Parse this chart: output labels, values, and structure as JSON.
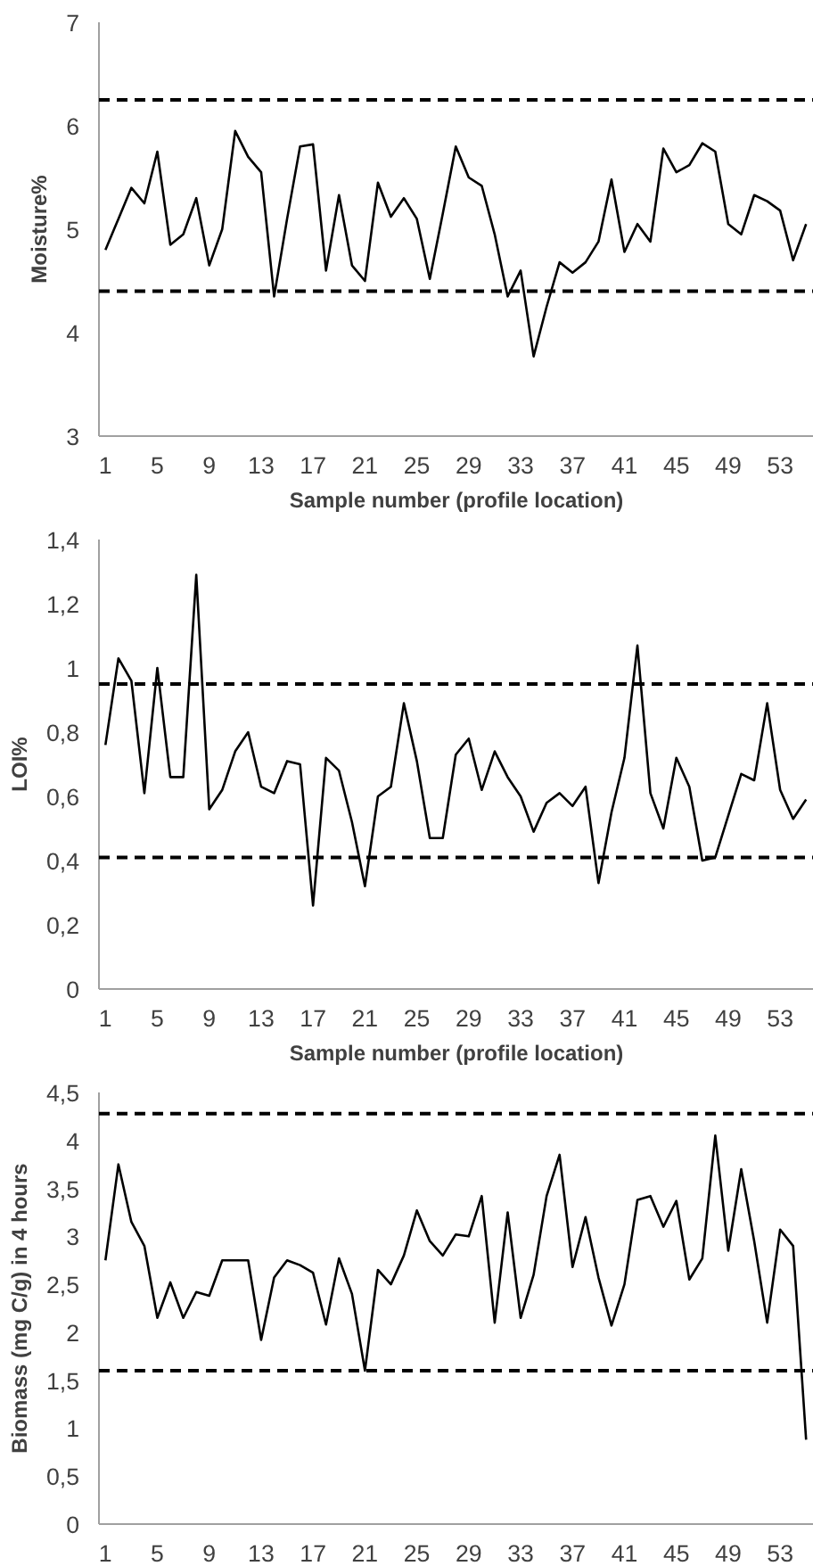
{
  "chart_data": [
    {
      "type": "line",
      "xlabel": "Sample number (profile location)",
      "ylabel": "Moisture%",
      "x": [
        1,
        2,
        3,
        4,
        5,
        6,
        7,
        8,
        9,
        10,
        11,
        12,
        13,
        14,
        15,
        16,
        17,
        18,
        19,
        20,
        21,
        22,
        23,
        24,
        25,
        26,
        27,
        28,
        29,
        30,
        31,
        32,
        33,
        34,
        35,
        36,
        37,
        38,
        39,
        40,
        41,
        42,
        43,
        44,
        45,
        46,
        47,
        48,
        49,
        50,
        51,
        52,
        53,
        54,
        55
      ],
      "xlim": [
        0.5,
        55.6
      ],
      "xticks": [
        1,
        5,
        9,
        13,
        17,
        21,
        25,
        29,
        33,
        37,
        41,
        45,
        49,
        53
      ],
      "ylim": [
        3,
        7
      ],
      "yticks": [
        3,
        4,
        5,
        6,
        7
      ],
      "grid": false,
      "series": [
        {
          "color": "#000000",
          "values": [
            4.8,
            5.1,
            5.4,
            5.25,
            5.75,
            4.85,
            4.95,
            5.3,
            4.65,
            5.0,
            5.95,
            5.7,
            5.55,
            4.35,
            5.1,
            5.8,
            5.82,
            4.6,
            5.33,
            4.65,
            4.5,
            5.45,
            5.12,
            5.3,
            5.1,
            4.52,
            5.15,
            5.8,
            5.5,
            5.42,
            4.95,
            4.35,
            4.6,
            3.77,
            4.25,
            4.68,
            4.58,
            4.68,
            4.88,
            5.48,
            4.78,
            5.05,
            4.88,
            5.78,
            5.55,
            5.62,
            5.83,
            5.75,
            5.05,
            4.95,
            5.33,
            5.27,
            5.18,
            4.7,
            5.05
          ]
        }
      ],
      "ref_lines": [
        {
          "axis": "y",
          "value": 6.25,
          "color": "#000000",
          "line_style": "dashed"
        },
        {
          "axis": "y",
          "value": 4.4,
          "color": "#000000",
          "line_style": "dashed"
        }
      ]
    },
    {
      "type": "line",
      "xlabel": "Sample number (profile location)",
      "ylabel": "LOI%",
      "x": [
        1,
        2,
        3,
        4,
        5,
        6,
        7,
        8,
        9,
        10,
        11,
        12,
        13,
        14,
        15,
        16,
        17,
        18,
        19,
        20,
        21,
        22,
        23,
        24,
        25,
        26,
        27,
        28,
        29,
        30,
        31,
        32,
        33,
        34,
        35,
        36,
        37,
        38,
        39,
        40,
        41,
        42,
        43,
        44,
        45,
        46,
        47,
        48,
        49,
        50,
        51,
        52,
        53,
        54,
        55
      ],
      "xlim": [
        0.5,
        55.6
      ],
      "xticks": [
        1,
        5,
        9,
        13,
        17,
        21,
        25,
        29,
        33,
        37,
        41,
        45,
        49,
        53
      ],
      "ylim": [
        0,
        1.4
      ],
      "yticks": [
        0,
        {
          "value": 0.2,
          "label": "0,2"
        },
        {
          "value": 0.4,
          "label": "0,4"
        },
        {
          "value": 0.6,
          "label": "0,6"
        },
        {
          "value": 0.8,
          "label": "0,8"
        },
        1,
        {
          "value": 1.2,
          "label": "1,2"
        },
        {
          "value": 1.4,
          "label": "1,4"
        }
      ],
      "grid": false,
      "series": [
        {
          "color": "#000000",
          "values": [
            0.76,
            1.03,
            0.96,
            0.61,
            1.0,
            0.66,
            0.66,
            1.29,
            0.56,
            0.62,
            0.74,
            0.8,
            0.63,
            0.61,
            0.71,
            0.7,
            0.26,
            0.72,
            0.68,
            0.52,
            0.32,
            0.6,
            0.63,
            0.89,
            0.71,
            0.47,
            0.47,
            0.73,
            0.78,
            0.62,
            0.74,
            0.66,
            0.6,
            0.49,
            0.58,
            0.61,
            0.57,
            0.63,
            0.33,
            0.55,
            0.72,
            1.07,
            0.61,
            0.5,
            0.72,
            0.63,
            0.4,
            0.41,
            0.54,
            0.67,
            0.65,
            0.89,
            0.62,
            0.53,
            0.59
          ]
        }
      ],
      "ref_lines": [
        {
          "axis": "y",
          "value": 0.95,
          "color": "#000000",
          "line_style": "dashed"
        },
        {
          "axis": "y",
          "value": 0.41,
          "color": "#000000",
          "line_style": "dashed"
        }
      ]
    },
    {
      "type": "line",
      "ylabel": "Biomass (mg C/g) in 4 hours",
      "x": [
        1,
        2,
        3,
        4,
        5,
        6,
        7,
        8,
        9,
        10,
        11,
        12,
        13,
        14,
        15,
        16,
        17,
        18,
        19,
        20,
        21,
        22,
        23,
        24,
        25,
        26,
        27,
        28,
        29,
        30,
        31,
        32,
        33,
        34,
        35,
        36,
        37,
        38,
        39,
        40,
        41,
        42,
        43,
        44,
        45,
        46,
        47,
        48,
        49,
        50,
        51,
        52,
        53,
        54,
        55
      ],
      "xlim": [
        0.5,
        55.6
      ],
      "xticks": [
        1,
        5,
        9,
        13,
        17,
        21,
        25,
        29,
        33,
        37,
        41,
        45,
        49,
        53
      ],
      "ylim": [
        0,
        4.5
      ],
      "yticks": [
        0,
        {
          "value": 0.5,
          "label": "0,5"
        },
        1,
        {
          "value": 1.5,
          "label": "1,5"
        },
        2,
        {
          "value": 2.5,
          "label": "2,5"
        },
        3,
        {
          "value": 3.5,
          "label": "3,5"
        },
        4,
        {
          "value": 4.5,
          "label": "4,5"
        }
      ],
      "grid": false,
      "series": [
        {
          "color": "#000000",
          "values": [
            2.75,
            3.75,
            3.15,
            2.9,
            2.15,
            2.52,
            2.15,
            2.42,
            2.38,
            2.75,
            2.75,
            2.75,
            1.92,
            2.57,
            2.75,
            2.7,
            2.62,
            2.08,
            2.77,
            2.4,
            1.6,
            2.65,
            2.5,
            2.8,
            3.27,
            2.95,
            2.8,
            3.02,
            3.0,
            3.42,
            2.1,
            3.25,
            2.15,
            2.6,
            3.42,
            3.85,
            2.68,
            3.2,
            2.57,
            2.07,
            2.5,
            3.38,
            3.42,
            3.1,
            3.37,
            2.55,
            2.77,
            4.05,
            2.85,
            3.7,
            2.95,
            2.1,
            3.07,
            2.9,
            0.88
          ]
        }
      ],
      "ref_lines": [
        {
          "axis": "y",
          "value": 4.28,
          "color": "#000000",
          "line_style": "dashed"
        },
        {
          "axis": "y",
          "value": 1.6,
          "color": "#000000",
          "line_style": "dashed"
        }
      ]
    }
  ]
}
